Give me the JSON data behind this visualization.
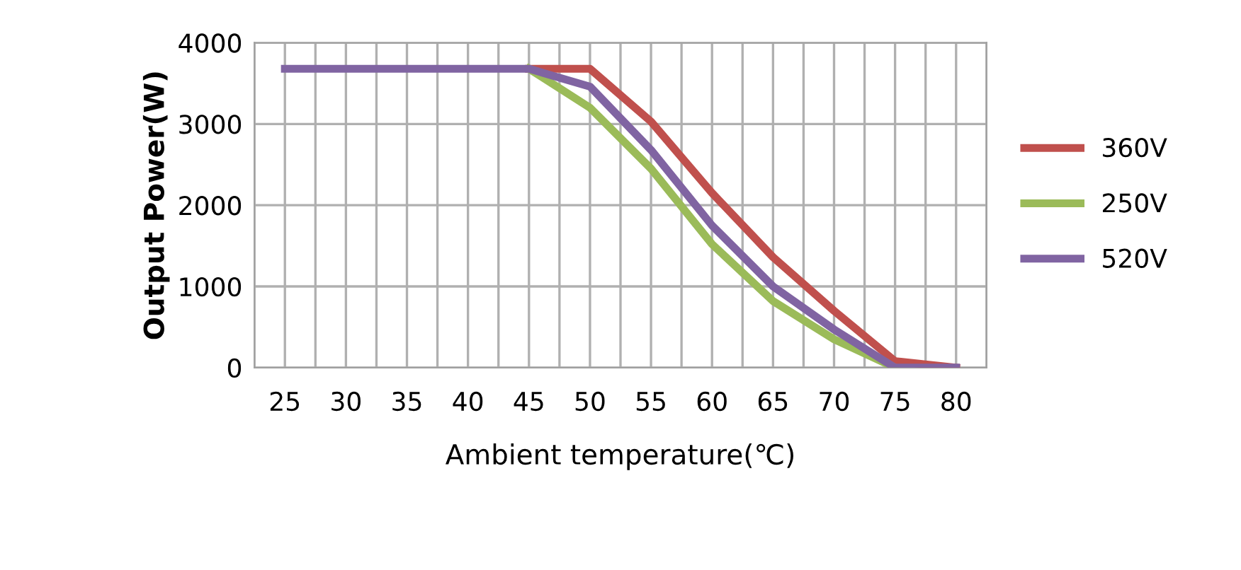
{
  "chart_data": {
    "type": "line",
    "xlabel": "Ambient temperature(℃)",
    "ylabel": "Output Power(W)",
    "x": [
      25,
      30,
      35,
      40,
      45,
      50,
      55,
      60,
      65,
      70,
      75,
      80
    ],
    "xlim": [
      22.5,
      82.5
    ],
    "xticks": [
      {
        "value": 22.5,
        "label": null
      },
      25,
      {
        "value": 27.5,
        "label": null
      },
      30,
      {
        "value": 32.5,
        "label": null
      },
      35,
      {
        "value": 37.5,
        "label": null
      },
      40,
      {
        "value": 42.5,
        "label": null
      },
      45,
      {
        "value": 47.5,
        "label": null
      },
      50,
      {
        "value": 52.5,
        "label": null
      },
      55,
      {
        "value": 57.5,
        "label": null
      },
      60,
      {
        "value": 62.5,
        "label": null
      },
      65,
      {
        "value": 67.5,
        "label": null
      },
      70,
      {
        "value": 72.5,
        "label": null
      },
      75,
      {
        "value": 77.5,
        "label": null
      },
      80,
      {
        "value": 82.5,
        "label": null
      }
    ],
    "ylim": [
      0,
      4000
    ],
    "yticks": [
      0,
      1000,
      2000,
      3000,
      4000
    ],
    "grid": true,
    "legend": "right",
    "marker": "none",
    "line_style": "solid",
    "series": [
      {
        "name": "360V",
        "color": "#c0504d",
        "values": [
          null,
          null,
          null,
          null,
          3680,
          3680,
          3030,
          2150,
          1360,
          700,
          80,
          0
        ]
      },
      {
        "name": "250V",
        "color": "#9bbb59",
        "values": [
          null,
          null,
          null,
          null,
          3680,
          3200,
          2450,
          1520,
          820,
          350,
          0,
          null
        ]
      },
      {
        "name": "520V",
        "color": "#8064a2",
        "values": [
          3680,
          3680,
          3680,
          3680,
          3680,
          3460,
          2680,
          1750,
          1000,
          470,
          0,
          0
        ]
      }
    ]
  }
}
